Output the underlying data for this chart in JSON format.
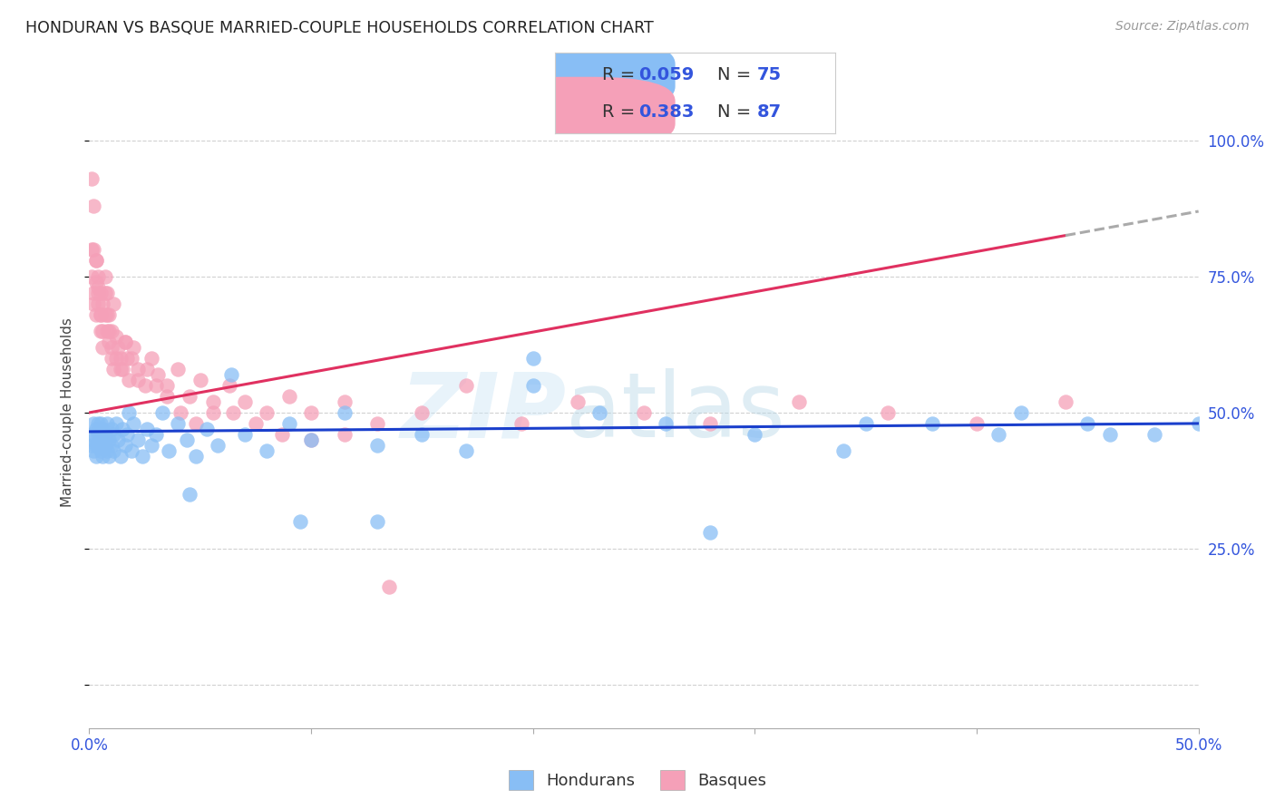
{
  "title": "HONDURAN VS BASQUE MARRIED-COUPLE HOUSEHOLDS CORRELATION CHART",
  "source": "Source: ZipAtlas.com",
  "ylabel": "Married-couple Households",
  "watermark_zip": "ZIP",
  "watermark_atlas": "atlas",
  "legend_r_h": "0.059",
  "legend_n_h": "75",
  "legend_r_b": "0.383",
  "legend_n_b": "87",
  "honduran_color": "#88bef5",
  "basque_color": "#f5a0b8",
  "trend_blue": "#1a3fcc",
  "trend_pink": "#e03060",
  "trend_gray": "#aaaaaa",
  "text_blue": "#3355dd",
  "text_dark": "#333333",
  "grid_color": "#cccccc",
  "bg_color": "#ffffff",
  "xmin": 0.0,
  "xmax": 0.5,
  "ymin": -0.08,
  "ymax": 1.08,
  "honduran_x": [
    0.001,
    0.001,
    0.002,
    0.002,
    0.002,
    0.003,
    0.003,
    0.003,
    0.004,
    0.004,
    0.004,
    0.005,
    0.005,
    0.005,
    0.006,
    0.006,
    0.006,
    0.007,
    0.007,
    0.008,
    0.008,
    0.009,
    0.009,
    0.01,
    0.01,
    0.011,
    0.011,
    0.012,
    0.013,
    0.014,
    0.015,
    0.016,
    0.017,
    0.018,
    0.019,
    0.02,
    0.022,
    0.024,
    0.026,
    0.028,
    0.03,
    0.033,
    0.036,
    0.04,
    0.044,
    0.048,
    0.053,
    0.058,
    0.064,
    0.07,
    0.08,
    0.09,
    0.1,
    0.115,
    0.13,
    0.15,
    0.17,
    0.2,
    0.23,
    0.26,
    0.3,
    0.34,
    0.38,
    0.42,
    0.46,
    0.5,
    0.13,
    0.2,
    0.28,
    0.35,
    0.41,
    0.45,
    0.48,
    0.095,
    0.045
  ],
  "honduran_y": [
    0.46,
    0.44,
    0.48,
    0.45,
    0.43,
    0.47,
    0.44,
    0.42,
    0.46,
    0.48,
    0.44,
    0.46,
    0.43,
    0.48,
    0.45,
    0.42,
    0.47,
    0.44,
    0.46,
    0.43,
    0.48,
    0.45,
    0.42,
    0.47,
    0.44,
    0.46,
    0.43,
    0.48,
    0.45,
    0.42,
    0.47,
    0.44,
    0.46,
    0.5,
    0.43,
    0.48,
    0.45,
    0.42,
    0.47,
    0.44,
    0.46,
    0.5,
    0.43,
    0.48,
    0.45,
    0.42,
    0.47,
    0.44,
    0.57,
    0.46,
    0.43,
    0.48,
    0.45,
    0.5,
    0.44,
    0.46,
    0.43,
    0.55,
    0.5,
    0.48,
    0.46,
    0.43,
    0.48,
    0.5,
    0.46,
    0.48,
    0.3,
    0.6,
    0.28,
    0.48,
    0.46,
    0.48,
    0.46,
    0.3,
    0.35
  ],
  "basque_x": [
    0.001,
    0.001,
    0.002,
    0.002,
    0.002,
    0.003,
    0.003,
    0.003,
    0.004,
    0.004,
    0.004,
    0.005,
    0.005,
    0.005,
    0.006,
    0.006,
    0.007,
    0.007,
    0.008,
    0.008,
    0.009,
    0.009,
    0.01,
    0.01,
    0.011,
    0.011,
    0.012,
    0.013,
    0.014,
    0.015,
    0.016,
    0.017,
    0.018,
    0.02,
    0.022,
    0.025,
    0.028,
    0.031,
    0.035,
    0.04,
    0.045,
    0.05,
    0.056,
    0.063,
    0.07,
    0.08,
    0.09,
    0.1,
    0.115,
    0.13,
    0.15,
    0.17,
    0.195,
    0.22,
    0.25,
    0.28,
    0.32,
    0.36,
    0.4,
    0.44,
    0.001,
    0.002,
    0.003,
    0.004,
    0.005,
    0.006,
    0.007,
    0.008,
    0.009,
    0.01,
    0.012,
    0.014,
    0.016,
    0.019,
    0.022,
    0.026,
    0.03,
    0.035,
    0.041,
    0.048,
    0.056,
    0.065,
    0.075,
    0.087,
    0.1,
    0.115,
    0.135
  ],
  "basque_y": [
    0.93,
    0.75,
    0.88,
    0.72,
    0.8,
    0.78,
    0.68,
    0.74,
    0.73,
    0.7,
    0.75,
    0.68,
    0.72,
    0.65,
    0.7,
    0.62,
    0.68,
    0.75,
    0.65,
    0.72,
    0.63,
    0.68,
    0.6,
    0.65,
    0.7,
    0.58,
    0.64,
    0.62,
    0.6,
    0.58,
    0.63,
    0.6,
    0.56,
    0.62,
    0.58,
    0.55,
    0.6,
    0.57,
    0.55,
    0.58,
    0.53,
    0.56,
    0.5,
    0.55,
    0.52,
    0.5,
    0.53,
    0.5,
    0.52,
    0.48,
    0.5,
    0.55,
    0.48,
    0.52,
    0.5,
    0.48,
    0.52,
    0.5,
    0.48,
    0.52,
    0.8,
    0.7,
    0.78,
    0.72,
    0.68,
    0.65,
    0.72,
    0.68,
    0.65,
    0.62,
    0.6,
    0.58,
    0.63,
    0.6,
    0.56,
    0.58,
    0.55,
    0.53,
    0.5,
    0.48,
    0.52,
    0.5,
    0.48,
    0.46,
    0.45,
    0.46,
    0.18
  ],
  "figsize": [
    14.06,
    8.92
  ],
  "dpi": 100
}
